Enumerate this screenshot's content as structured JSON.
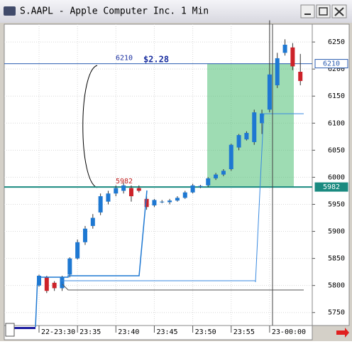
{
  "chart_data": {
    "type": "candlestick",
    "title": "S.AAPL - Apple Computer Inc. 1 Min",
    "annotation": "$2.28",
    "categories": [
      "22-23:30",
      null,
      null,
      null,
      null,
      "23:35",
      null,
      null,
      null,
      null,
      "23:40",
      null,
      null,
      null,
      null,
      "23:45",
      null,
      null,
      null,
      null,
      "23:50",
      null,
      null,
      null,
      null,
      "23:55",
      null,
      null,
      null,
      null,
      "23-00:00",
      null,
      null,
      null,
      null
    ],
    "series": [
      {
        "up_color": "#1e78d2",
        "down_color": "#cc2229",
        "open": [
          5800,
          5815,
          5805,
          5795,
          5820,
          5850,
          5880,
          5910,
          5935,
          5955,
          5970,
          5975,
          5980,
          5980,
          5960,
          5948,
          5955,
          5954,
          5957,
          5962,
          5972,
          5982,
          5985,
          5998,
          6005,
          6015,
          6055,
          6070,
          6065,
          6100,
          6125,
          6170,
          6230,
          6240,
          6195
        ],
        "high": [
          5820,
          5818,
          5808,
          5818,
          5852,
          5885,
          5910,
          5932,
          5970,
          5975,
          5985,
          5990,
          5985,
          5985,
          5965,
          5960,
          5958,
          5960,
          5965,
          5975,
          5988,
          5986,
          6000,
          6008,
          6015,
          6062,
          6080,
          6085,
          6125,
          6125,
          6290,
          6230,
          6255,
          6248,
          6228
        ],
        "low": [
          5798,
          5786,
          5790,
          5790,
          5815,
          5848,
          5875,
          5905,
          5930,
          5950,
          5965,
          5970,
          5955,
          5972,
          5940,
          5945,
          5952,
          5950,
          5955,
          5960,
          5970,
          5980,
          5982,
          5995,
          6002,
          6012,
          6050,
          6068,
          6060,
          6080,
          6120,
          6165,
          6225,
          6198,
          6170
        ],
        "close": [
          5818,
          5790,
          5795,
          5815,
          5850,
          5880,
          5905,
          5925,
          5965,
          5970,
          5980,
          5985,
          5965,
          5975,
          5945,
          5958,
          5955,
          5957,
          5962,
          5972,
          5985,
          5984,
          5998,
          6005,
          6012,
          6060,
          6078,
          6082,
          6120,
          6118,
          6190,
          6220,
          6245,
          6205,
          6178
        ]
      }
    ],
    "hlines": [
      {
        "value": 6210,
        "label": "6210",
        "color": "#2a5bb0",
        "label_color": "#1a2fa0"
      },
      {
        "value": 5982,
        "label": "5982",
        "color": "#1a8a80",
        "label_color": "#c02020"
      }
    ],
    "ylim": [
      5726,
      6283
    ],
    "yticks": [
      5750,
      5800,
      5850,
      5900,
      5950,
      6000,
      6050,
      6100,
      6150,
      6200,
      6250
    ],
    "grid": true
  }
}
